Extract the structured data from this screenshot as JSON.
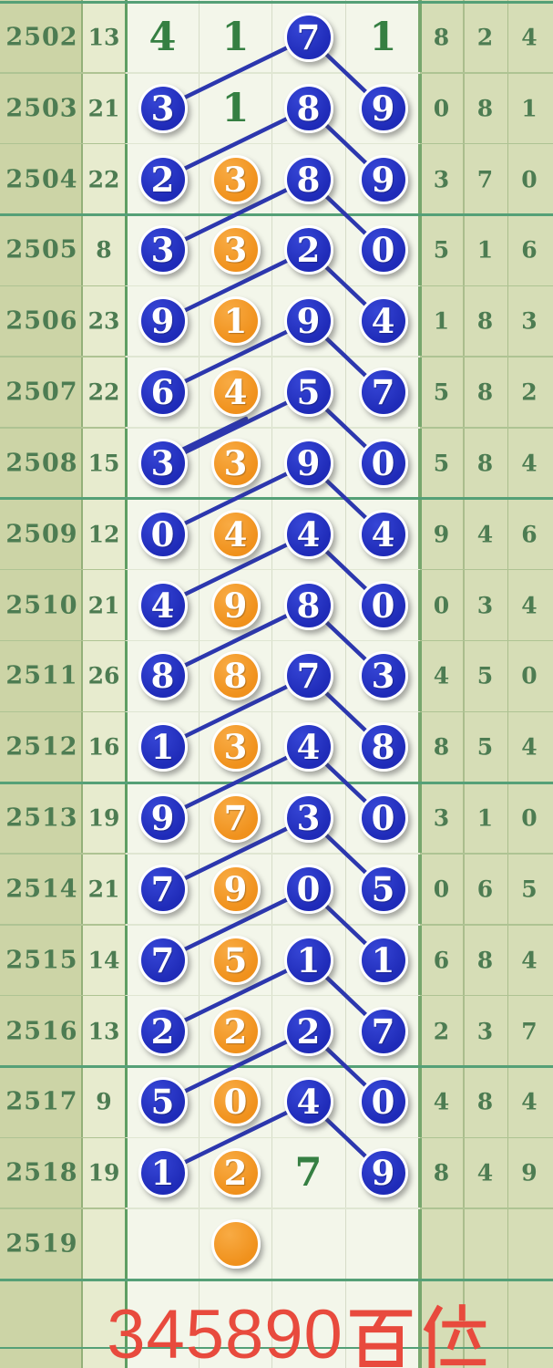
{
  "chart_data": {
    "type": "table",
    "title": "345890百位",
    "legend": {
      "blue_circle_meaning": "drawn-digit node on trend line",
      "orange_circle_meaning": "highlighted middle-column digit",
      "plain_green_meaning": "un-circled digit"
    },
    "rows": [
      {
        "period": "2502",
        "sum": "13",
        "numbers": [
          {
            "value": "4",
            "style": "plain"
          },
          {
            "value": "1",
            "style": "plain"
          },
          {
            "value": "7",
            "style": "blue"
          },
          {
            "value": "1",
            "style": "plain"
          }
        ],
        "right": [
          "8",
          "2",
          "4"
        ]
      },
      {
        "period": "2503",
        "sum": "21",
        "numbers": [
          {
            "value": "3",
            "style": "blue"
          },
          {
            "value": "1",
            "style": "plain"
          },
          {
            "value": "8",
            "style": "blue"
          },
          {
            "value": "9",
            "style": "blue"
          }
        ],
        "right": [
          "0",
          "8",
          "1"
        ]
      },
      {
        "period": "2504",
        "sum": "22",
        "numbers": [
          {
            "value": "2",
            "style": "blue"
          },
          {
            "value": "3",
            "style": "orange"
          },
          {
            "value": "8",
            "style": "blue"
          },
          {
            "value": "9",
            "style": "blue"
          }
        ],
        "right": [
          "3",
          "7",
          "0"
        ]
      },
      {
        "period": "2505",
        "sum": "8",
        "numbers": [
          {
            "value": "3",
            "style": "blue"
          },
          {
            "value": "3",
            "style": "orange"
          },
          {
            "value": "2",
            "style": "blue"
          },
          {
            "value": "0",
            "style": "blue"
          }
        ],
        "right": [
          "5",
          "1",
          "6"
        ]
      },
      {
        "period": "2506",
        "sum": "23",
        "numbers": [
          {
            "value": "9",
            "style": "blue"
          },
          {
            "value": "1",
            "style": "orange"
          },
          {
            "value": "9",
            "style": "blue"
          },
          {
            "value": "4",
            "style": "blue"
          }
        ],
        "right": [
          "1",
          "8",
          "3"
        ]
      },
      {
        "period": "2507",
        "sum": "22",
        "numbers": [
          {
            "value": "6",
            "style": "blue"
          },
          {
            "value": "4",
            "style": "orange"
          },
          {
            "value": "5",
            "style": "blue"
          },
          {
            "value": "7",
            "style": "blue"
          }
        ],
        "right": [
          "5",
          "8",
          "2"
        ]
      },
      {
        "period": "2508",
        "sum": "15",
        "numbers": [
          {
            "value": "3",
            "style": "blue"
          },
          {
            "value": "3",
            "style": "orange"
          },
          {
            "value": "9",
            "style": "blue"
          },
          {
            "value": "0",
            "style": "blue"
          }
        ],
        "right": [
          "5",
          "8",
          "4"
        ]
      },
      {
        "period": "2509",
        "sum": "12",
        "numbers": [
          {
            "value": "0",
            "style": "blue"
          },
          {
            "value": "4",
            "style": "orange"
          },
          {
            "value": "4",
            "style": "blue"
          },
          {
            "value": "4",
            "style": "blue"
          }
        ],
        "right": [
          "9",
          "4",
          "6"
        ]
      },
      {
        "period": "2510",
        "sum": "21",
        "numbers": [
          {
            "value": "4",
            "style": "blue"
          },
          {
            "value": "9",
            "style": "orange"
          },
          {
            "value": "8",
            "style": "blue"
          },
          {
            "value": "0",
            "style": "blue"
          }
        ],
        "right": [
          "0",
          "3",
          "4"
        ]
      },
      {
        "period": "2511",
        "sum": "26",
        "numbers": [
          {
            "value": "8",
            "style": "blue"
          },
          {
            "value": "8",
            "style": "orange"
          },
          {
            "value": "7",
            "style": "blue"
          },
          {
            "value": "3",
            "style": "blue"
          }
        ],
        "right": [
          "4",
          "5",
          "0"
        ]
      },
      {
        "period": "2512",
        "sum": "16",
        "numbers": [
          {
            "value": "1",
            "style": "blue"
          },
          {
            "value": "3",
            "style": "orange"
          },
          {
            "value": "4",
            "style": "blue"
          },
          {
            "value": "8",
            "style": "blue"
          }
        ],
        "right": [
          "8",
          "5",
          "4"
        ]
      },
      {
        "period": "2513",
        "sum": "19",
        "numbers": [
          {
            "value": "9",
            "style": "blue"
          },
          {
            "value": "7",
            "style": "orange"
          },
          {
            "value": "3",
            "style": "blue"
          },
          {
            "value": "0",
            "style": "blue"
          }
        ],
        "right": [
          "3",
          "1",
          "0"
        ]
      },
      {
        "period": "2514",
        "sum": "21",
        "numbers": [
          {
            "value": "7",
            "style": "blue"
          },
          {
            "value": "9",
            "style": "orange"
          },
          {
            "value": "0",
            "style": "blue"
          },
          {
            "value": "5",
            "style": "blue"
          }
        ],
        "right": [
          "0",
          "6",
          "5"
        ]
      },
      {
        "period": "2515",
        "sum": "14",
        "numbers": [
          {
            "value": "7",
            "style": "blue"
          },
          {
            "value": "5",
            "style": "orange"
          },
          {
            "value": "1",
            "style": "blue"
          },
          {
            "value": "1",
            "style": "blue"
          }
        ],
        "right": [
          "6",
          "8",
          "4"
        ]
      },
      {
        "period": "2516",
        "sum": "13",
        "numbers": [
          {
            "value": "2",
            "style": "blue"
          },
          {
            "value": "2",
            "style": "orange"
          },
          {
            "value": "2",
            "style": "blue"
          },
          {
            "value": "7",
            "style": "blue"
          }
        ],
        "right": [
          "2",
          "3",
          "7"
        ]
      },
      {
        "period": "2517",
        "sum": "9",
        "numbers": [
          {
            "value": "5",
            "style": "blue"
          },
          {
            "value": "0",
            "style": "orange"
          },
          {
            "value": "4",
            "style": "blue"
          },
          {
            "value": "0",
            "style": "blue"
          }
        ],
        "right": [
          "4",
          "8",
          "4"
        ]
      },
      {
        "period": "2518",
        "sum": "19",
        "numbers": [
          {
            "value": "1",
            "style": "blue"
          },
          {
            "value": "2",
            "style": "orange"
          },
          {
            "value": "7",
            "style": "plain"
          },
          {
            "value": "9",
            "style": "blue"
          }
        ],
        "right": [
          "8",
          "4",
          "9"
        ]
      },
      {
        "period": "2519",
        "sum": "",
        "numbers": [
          null,
          {
            "value": "",
            "style": "orange"
          },
          null,
          null
        ],
        "right": [
          "",
          "",
          ""
        ]
      }
    ],
    "line_rule": "each row's 3rd-column blue circle connects to the next row's 1st-column and 4th-column blue circles"
  },
  "footer": {
    "label": "345890百位",
    "digits": "345890",
    "hanzi": "百位"
  },
  "colors": {
    "blue": "#1f2bb8",
    "blue_hi": "#3646d6",
    "orange": "#f0911c",
    "orange_hi": "#f8ab44",
    "trend_line": "#2c37ae",
    "plain_green": "#357f42",
    "tbl_green": "#4d7c52",
    "left_bg": "#ccd4a6",
    "sum_bg": "#e7ebce",
    "chart_bg": "#f3f6ea",
    "right_bg": "#d6ddb6",
    "section_line": "#55a077",
    "olive_row_line": "#aec393",
    "chart_row_line": "#dfe6d2",
    "chart_vline": "#d6dcc8",
    "right_vline": "#aabd8d",
    "left_vline": "#93b079",
    "mid_vline": "#5f9e63",
    "heavy_vline": "#78a76d",
    "red": "#e84a3d"
  }
}
